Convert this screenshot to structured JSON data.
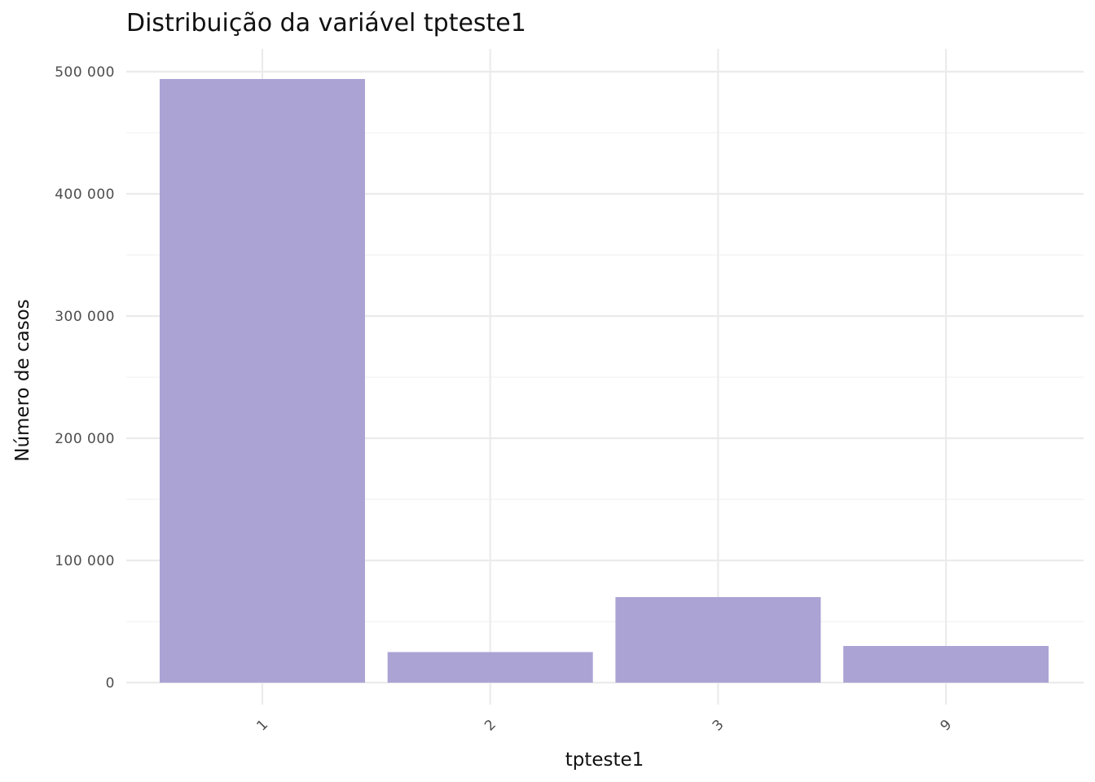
{
  "chart_data": {
    "type": "bar",
    "title": "Distribuição da variável  tpteste1",
    "xlabel": "tpteste1",
    "ylabel": "Número de casos",
    "categories": [
      "1",
      "2",
      "3",
      "9"
    ],
    "values": [
      494000,
      25000,
      70000,
      30000
    ],
    "ylim": [
      0,
      500000
    ],
    "yticks": [
      0,
      100000,
      200000,
      300000,
      400000,
      500000
    ],
    "ytick_labels": [
      "0",
      "100 000",
      "200 000",
      "300 000",
      "400 000",
      "500 000"
    ],
    "grid": true,
    "legend": "none",
    "bar_color": "#aba3d4",
    "x_tick_rotation_deg": -45
  }
}
